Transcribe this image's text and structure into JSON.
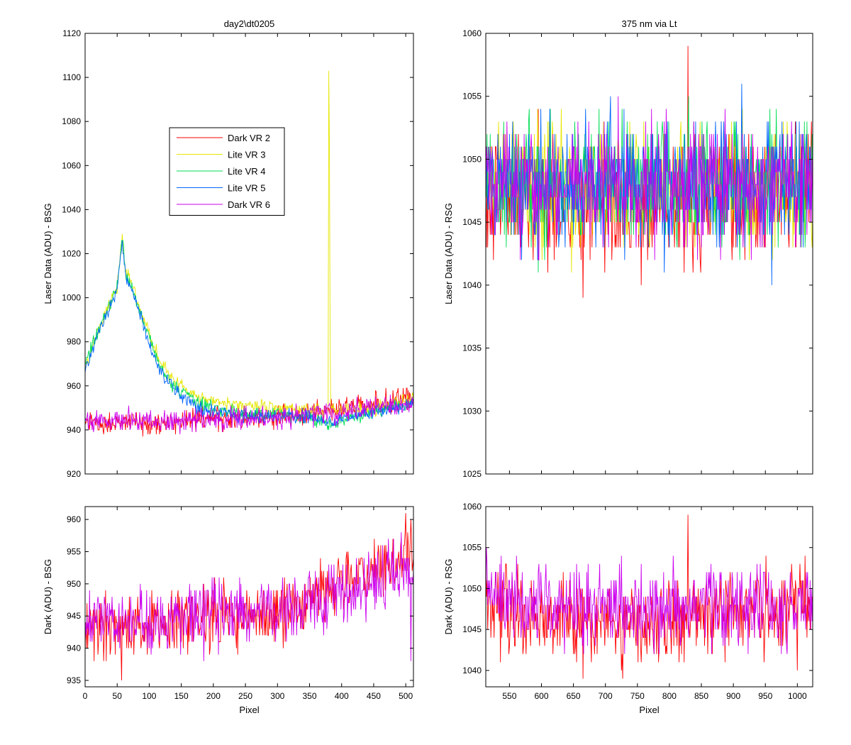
{
  "colors": {
    "Dark VR 2": "#ff0000",
    "Lite VR 3": "#e6e600",
    "Lite VR 4": "#00dd55",
    "Lite VR 5": "#0066ff",
    "Dark VR 6": "#cc00ee"
  },
  "chart_data": [
    {
      "type": "line",
      "title": "day2\\dt0205",
      "xlabel": "",
      "ylabel": "Laser Data (ADU) - BSG",
      "xlim": [
        0,
        512
      ],
      "ylim": [
        920,
        1120
      ],
      "yticks": [
        920,
        940,
        960,
        980,
        1000,
        1020,
        1040,
        1060,
        1080,
        1100,
        1120
      ],
      "xticks": [
        0,
        50,
        100,
        150,
        200,
        250,
        300,
        350,
        400,
        450,
        500
      ],
      "x_tick_labels_shown": false,
      "legend": "inside-upper-left",
      "noise": true,
      "series": [
        {
          "name": "Dark VR 2",
          "noise_amp": 2.5,
          "x": [
            0,
            100,
            200,
            300,
            350,
            400,
            450,
            512
          ],
          "y": [
            943,
            943,
            945,
            946,
            947,
            950,
            952,
            954
          ]
        },
        {
          "name": "Lite VR 3",
          "noise_amp": 1.5,
          "spikes": [
            [
              380,
              1103
            ],
            [
              381,
              1070
            ],
            [
              382,
              993
            ]
          ],
          "x": [
            0,
            20,
            40,
            50,
            58,
            63,
            70,
            80,
            90,
            100,
            110,
            125,
            140,
            160,
            180,
            200,
            230,
            260,
            300,
            350,
            400,
            450,
            512
          ],
          "y": [
            968,
            985,
            998,
            1005,
            1028,
            1012,
            1008,
            1000,
            992,
            984,
            975,
            968,
            963,
            958,
            955,
            953,
            951,
            951,
            950,
            949,
            949,
            950,
            954
          ]
        },
        {
          "name": "Lite VR 4",
          "noise_amp": 1.5,
          "x": [
            0,
            20,
            40,
            50,
            58,
            63,
            70,
            80,
            90,
            100,
            110,
            125,
            140,
            160,
            180,
            200,
            230,
            260,
            300,
            350,
            390,
            400,
            450,
            512
          ],
          "y": [
            970,
            985,
            998,
            1005,
            1028,
            1011,
            1007,
            999,
            990,
            982,
            973,
            965,
            960,
            955,
            952,
            950,
            948,
            947,
            947,
            946,
            942,
            945,
            948,
            952
          ]
        },
        {
          "name": "Lite VR 5",
          "noise_amp": 1.5,
          "x": [
            0,
            20,
            40,
            50,
            58,
            63,
            70,
            80,
            90,
            100,
            110,
            125,
            140,
            160,
            180,
            200,
            230,
            260,
            300,
            350,
            390,
            400,
            450,
            512
          ],
          "y": [
            966,
            984,
            996,
            1004,
            1025,
            1010,
            1006,
            997,
            988,
            979,
            970,
            963,
            958,
            953,
            950,
            948,
            947,
            946,
            946,
            946,
            943,
            945,
            948,
            952
          ]
        },
        {
          "name": "Dark VR 6",
          "noise_amp": 2.5,
          "x": [
            0,
            100,
            200,
            300,
            350,
            400,
            450,
            512
          ],
          "y": [
            944,
            944,
            945,
            946,
            947,
            948,
            950,
            952
          ]
        }
      ]
    },
    {
      "type": "line",
      "title": "375 nm via Lt",
      "xlabel": "",
      "ylabel": "Laser Data (ADU) - RSG",
      "xlim": [
        513,
        1024
      ],
      "ylim": [
        1025,
        1060
      ],
      "yticks": [
        1025,
        1030,
        1035,
        1040,
        1045,
        1050,
        1055,
        1060
      ],
      "xticks": [
        550,
        600,
        650,
        700,
        750,
        800,
        850,
        900,
        950,
        1000
      ],
      "x_tick_labels_shown": false,
      "noise": true,
      "series": [
        {
          "name": "Dark VR 2",
          "noise_amp": 2.5,
          "spikes": [
            [
              829,
              1059
            ],
            [
              665,
              1039
            ]
          ],
          "x": [
            513,
            600,
            700,
            800,
            900,
            1000,
            1024
          ],
          "y": [
            1048,
            1047,
            1046,
            1046,
            1047,
            1048,
            1048
          ]
        },
        {
          "name": "Lite VR 3",
          "noise_amp": 2.5,
          "x": [
            513,
            600,
            700,
            800,
            900,
            1000,
            1024
          ],
          "y": [
            1048,
            1048,
            1048,
            1048,
            1048,
            1048,
            1048
          ]
        },
        {
          "name": "Lite VR 4",
          "noise_amp": 2.5,
          "x": [
            513,
            600,
            700,
            800,
            900,
            1000,
            1024
          ],
          "y": [
            1048,
            1048,
            1048,
            1048,
            1048,
            1048,
            1048
          ]
        },
        {
          "name": "Lite VR 5",
          "noise_amp": 2.5,
          "spikes": [
            [
              913,
              1056
            ],
            [
              960,
              1040
            ]
          ],
          "x": [
            513,
            600,
            700,
            800,
            900,
            1000,
            1024
          ],
          "y": [
            1048,
            1048,
            1048,
            1048,
            1048,
            1048,
            1048
          ]
        },
        {
          "name": "Dark VR 6",
          "noise_amp": 2.5,
          "x": [
            513,
            600,
            700,
            800,
            900,
            1000,
            1024
          ],
          "y": [
            1049,
            1048,
            1048,
            1048,
            1048,
            1048,
            1049
          ]
        }
      ]
    },
    {
      "type": "line",
      "title": "",
      "xlabel": "Pixel",
      "ylabel": "Dark (ADU) - BSG",
      "xlim": [
        0,
        512
      ],
      "ylim": [
        934,
        962
      ],
      "yticks": [
        935,
        940,
        945,
        950,
        955,
        960
      ],
      "xticks": [
        0,
        50,
        100,
        150,
        200,
        250,
        300,
        350,
        400,
        450,
        500
      ],
      "x_tick_labels_shown": true,
      "noise": true,
      "series": [
        {
          "name": "Dark VR 2",
          "noise_amp": 2.5,
          "spikes": [
            [
              57,
              935
            ],
            [
              500,
              961
            ]
          ],
          "x": [
            0,
            100,
            200,
            300,
            350,
            400,
            450,
            512
          ],
          "y": [
            943,
            943,
            945,
            946,
            947,
            950,
            952,
            954
          ]
        },
        {
          "name": "Dark VR 6",
          "noise_amp": 2.5,
          "spikes": [
            [
              508,
              938
            ]
          ],
          "x": [
            0,
            100,
            200,
            300,
            350,
            400,
            450,
            512
          ],
          "y": [
            944,
            944,
            945,
            946,
            947,
            948,
            950,
            952
          ]
        }
      ]
    },
    {
      "type": "line",
      "title": "",
      "xlabel": "Pixel",
      "ylabel": "Dark (ADU) - RSG",
      "xlim": [
        513,
        1024
      ],
      "ylim": [
        1038,
        1060
      ],
      "yticks": [
        1040,
        1045,
        1050,
        1055,
        1060
      ],
      "xticks": [
        550,
        600,
        650,
        700,
        750,
        800,
        850,
        900,
        950,
        1000
      ],
      "x_tick_labels_shown": true,
      "noise": true,
      "series": [
        {
          "name": "Dark VR 2",
          "noise_amp": 2.5,
          "spikes": [
            [
              829,
              1059
            ],
            [
              665,
              1039
            ],
            [
              1000,
              1040
            ]
          ],
          "x": [
            513,
            600,
            700,
            800,
            900,
            1000,
            1024
          ],
          "y": [
            1048,
            1047,
            1046,
            1046,
            1047,
            1048,
            1048
          ]
        },
        {
          "name": "Dark VR 6",
          "noise_amp": 2.5,
          "x": [
            513,
            600,
            700,
            800,
            900,
            1000,
            1024
          ],
          "y": [
            1049,
            1048,
            1048,
            1048,
            1048,
            1048,
            1049
          ]
        }
      ]
    }
  ]
}
